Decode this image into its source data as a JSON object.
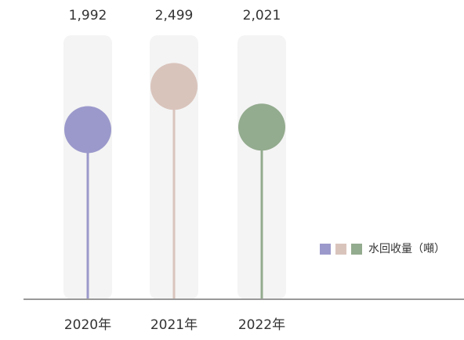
{
  "chart_data": {
    "type": "lollipop",
    "categories": [
      "2020年",
      "2021年",
      "2022年"
    ],
    "series": [
      {
        "name": "水回收量（噸）",
        "colors": [
          "#9b99cb",
          "#d9c4bc",
          "#93ab8e"
        ],
        "values": [
          1992,
          2499,
          2021
        ],
        "value_labels": [
          "1,992",
          "2,499",
          "2,021"
        ]
      }
    ],
    "ylim": [
      0,
      3100
    ]
  }
}
